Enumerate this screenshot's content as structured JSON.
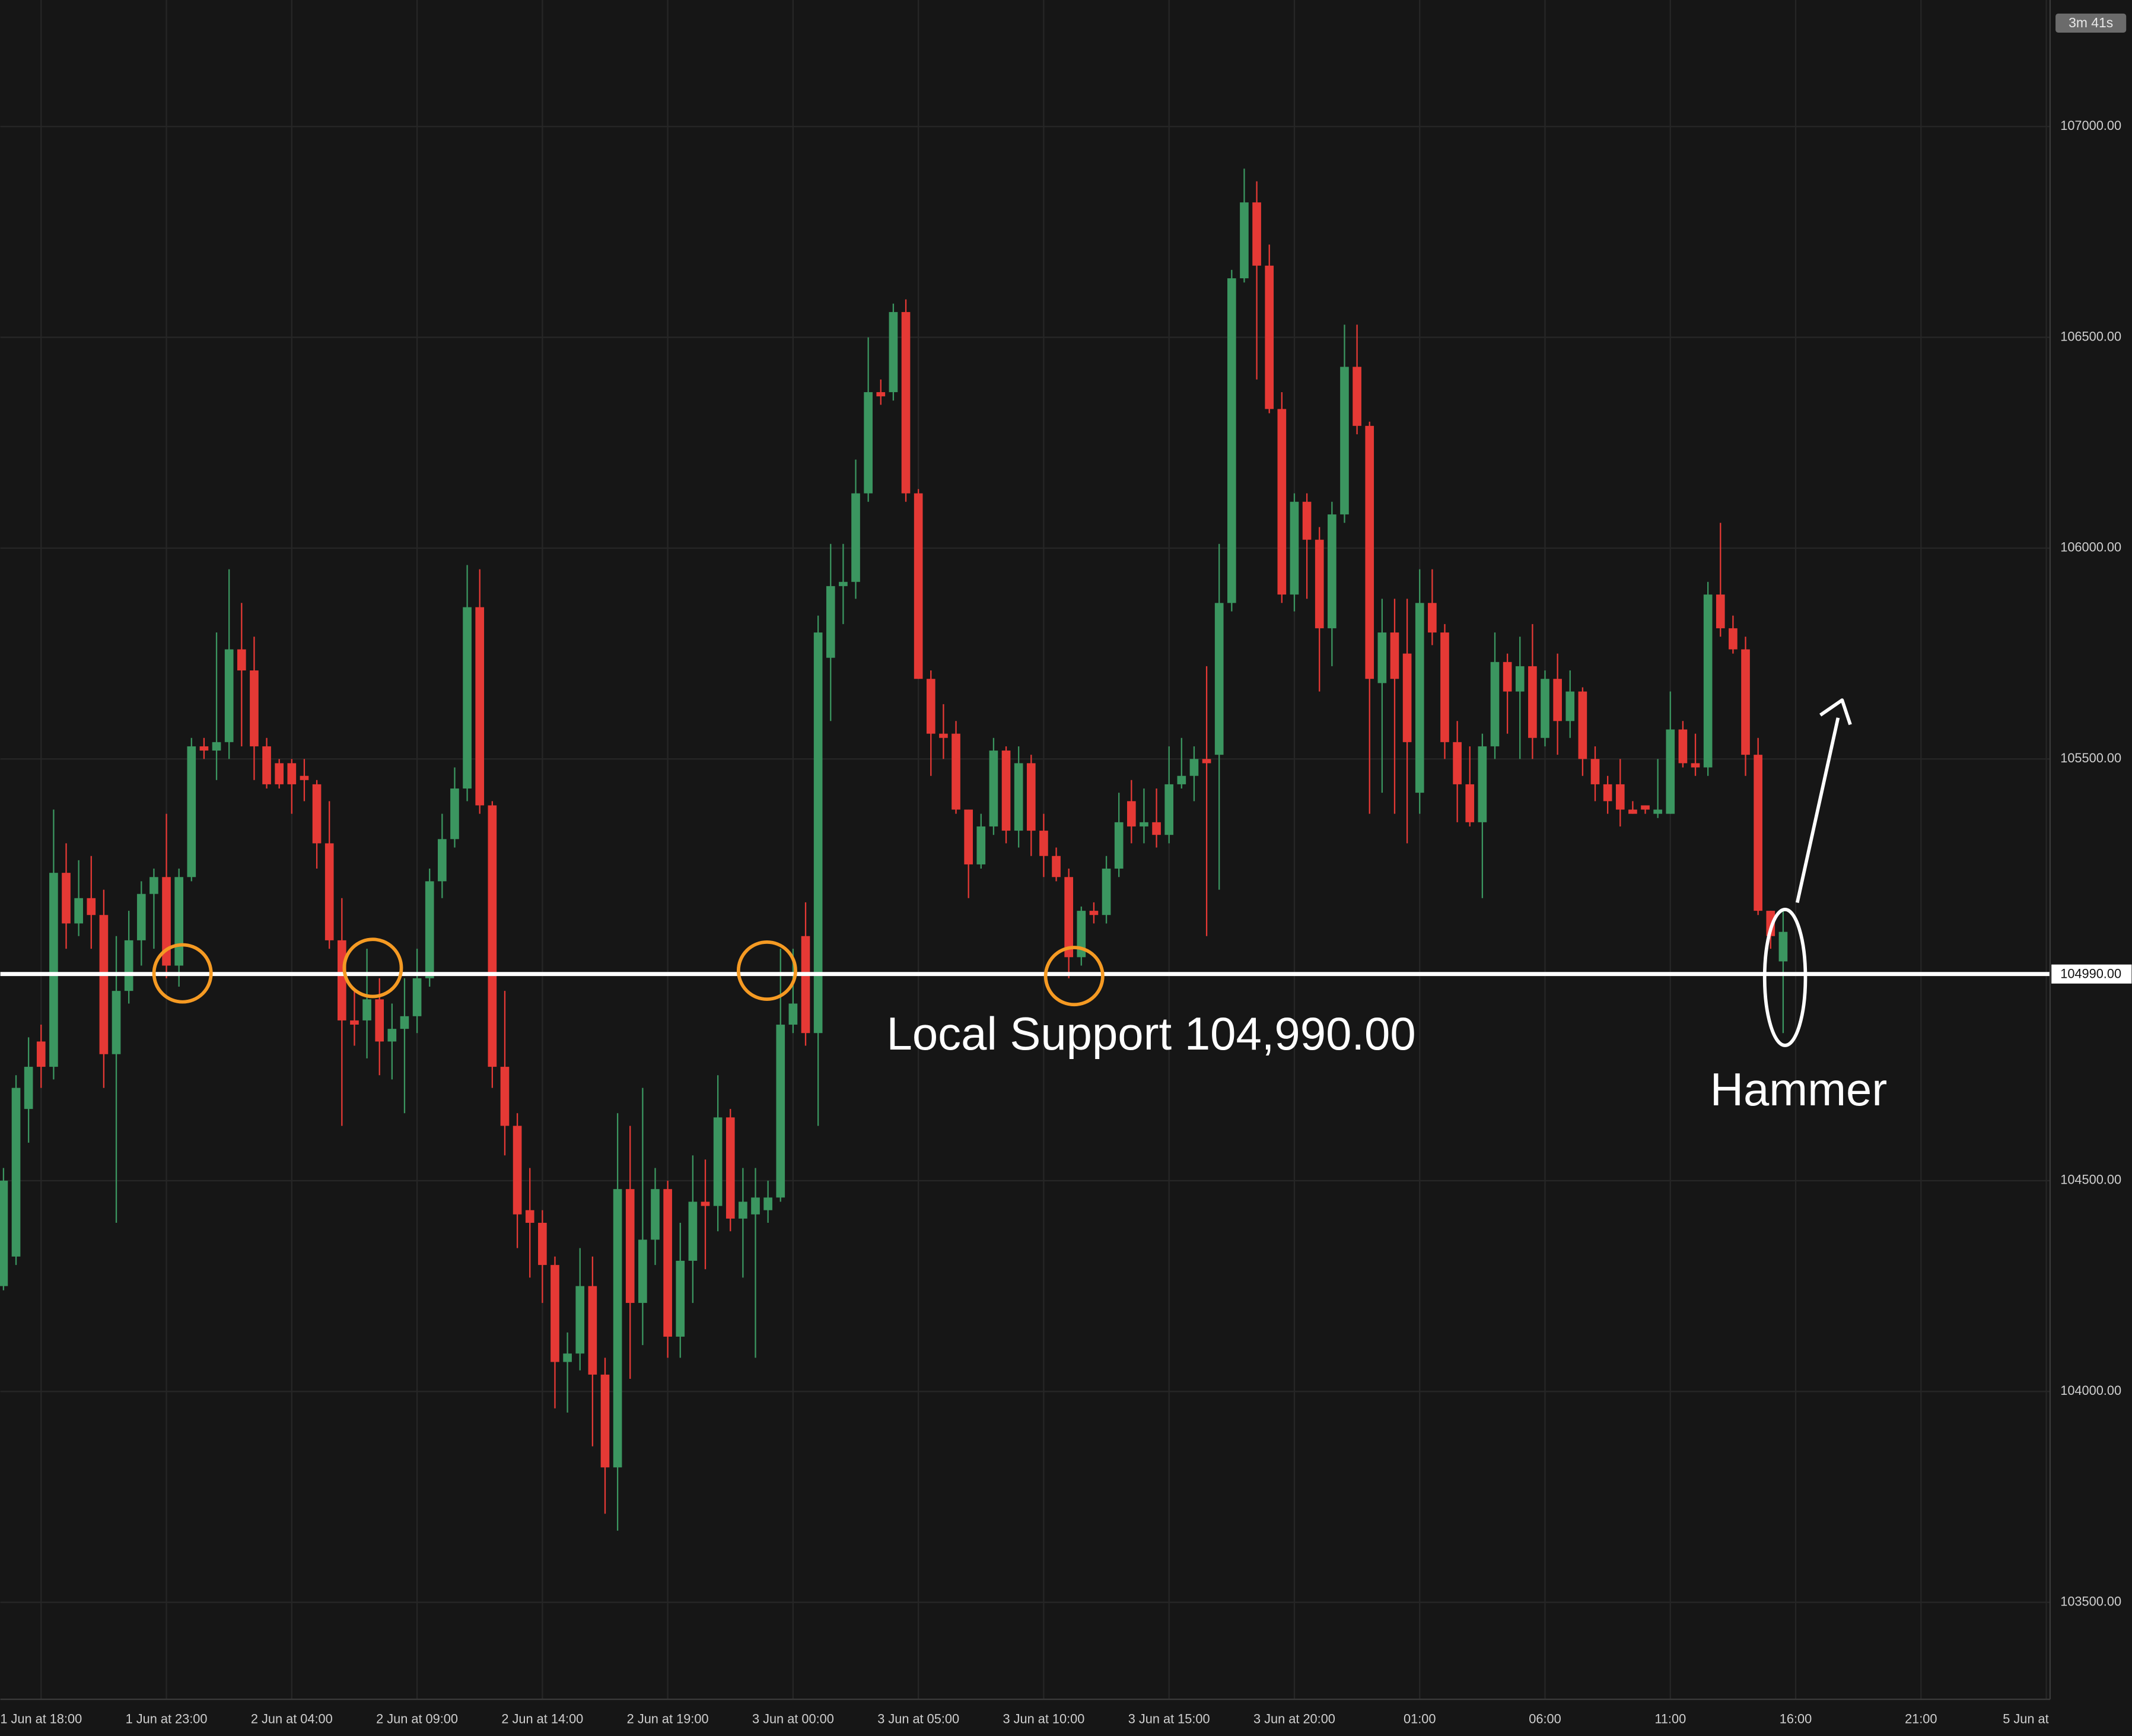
{
  "chart_data": {
    "type": "candlestick",
    "timer": "3m 41s",
    "annotations": [
      "Local Support 104,990.00",
      "Hammer"
    ],
    "support": {
      "value": 104990,
      "label": "104990.00"
    },
    "support_color": "#ffffff",
    "marker_color": "#f59a23",
    "up_color": "#3b9660",
    "down_color": "#e53935",
    "grid": true,
    "xlim": [
      -3.25,
      160.3
    ],
    "ylim": [
      103270,
      107300
    ],
    "yticks": [
      {
        "value": 103500,
        "label": "103500.00"
      },
      {
        "value": 104000,
        "label": "104000.00"
      },
      {
        "value": 104500,
        "label": "104500.00"
      },
      {
        "value": 105500,
        "label": "105500.00"
      },
      {
        "value": 106000,
        "label": "106000.00"
      },
      {
        "value": 106500,
        "label": "106500.00"
      },
      {
        "value": 107000,
        "label": "107000.00"
      }
    ],
    "xticks": [
      {
        "value": 0,
        "label": "1 Jun at 18:00"
      },
      {
        "value": 10,
        "label": "1 Jun at 23:00"
      },
      {
        "value": 20,
        "label": "2 Jun at 04:00"
      },
      {
        "value": 30,
        "label": "2 Jun at 09:00"
      },
      {
        "value": 40,
        "label": "2 Jun at 14:00"
      },
      {
        "value": 50,
        "label": "2 Jun at 19:00"
      },
      {
        "value": 60,
        "label": "3 Jun at 00:00"
      },
      {
        "value": 70,
        "label": "3 Jun at 05:00"
      },
      {
        "value": 80,
        "label": "3 Jun at 10:00"
      },
      {
        "value": 90,
        "label": "3 Jun at 15:00"
      },
      {
        "value": 100,
        "label": "3 Jun at 20:00"
      },
      {
        "value": 110,
        "label": "01:00"
      },
      {
        "value": 120,
        "label": "06:00"
      },
      {
        "value": 130,
        "label": "11:00"
      },
      {
        "value": 140,
        "label": "16:00"
      },
      {
        "value": 150,
        "label": "21:00"
      },
      {
        "value": 160,
        "label": "5 Jun at"
      }
    ],
    "x": [
      -3,
      -2,
      -1,
      0,
      1,
      2,
      3,
      4,
      5,
      6,
      7,
      8,
      9,
      10,
      11,
      12,
      13,
      14,
      15,
      16,
      17,
      18,
      19,
      20,
      21,
      22,
      23,
      24,
      25,
      26,
      27,
      28,
      29,
      30,
      31,
      32,
      33,
      34,
      35,
      36,
      37,
      38,
      39,
      40,
      41,
      42,
      43,
      44,
      45,
      46,
      47,
      48,
      49,
      50,
      51,
      52,
      53,
      54,
      55,
      56,
      57,
      58,
      59,
      60,
      61,
      62,
      63,
      64,
      65,
      66,
      67,
      68,
      69,
      70,
      71,
      72,
      73,
      74,
      75,
      76,
      77,
      78,
      79,
      80,
      81,
      82,
      83,
      84,
      85,
      86,
      87,
      88,
      89,
      90,
      91,
      92,
      93,
      94,
      95,
      96,
      97,
      98,
      99,
      100,
      101,
      102,
      103,
      104,
      105,
      106,
      107,
      108,
      109,
      110,
      111,
      112,
      113,
      114,
      115,
      116,
      117,
      118,
      119,
      120,
      121,
      122,
      123,
      124,
      125,
      126,
      127,
      128,
      129,
      130,
      131,
      132,
      133,
      134,
      135,
      136,
      137,
      138,
      139
    ],
    "open": [
      104250,
      104320,
      104670,
      104830,
      104770,
      105230,
      105110,
      105170,
      105130,
      104800,
      104950,
      105070,
      105180,
      105220,
      105010,
      105220,
      105530,
      105520,
      105540,
      105760,
      105710,
      105530,
      105490,
      105490,
      105460,
      105440,
      105300,
      105070,
      104880,
      104880,
      104930,
      104830,
      104860,
      104890,
      104980,
      105210,
      105310,
      105430,
      105860,
      105390,
      104770,
      104630,
      104430,
      104400,
      104300,
      104070,
      104090,
      104250,
      104040,
      103820,
      104480,
      104210,
      104360,
      104480,
      104130,
      104310,
      104450,
      104440,
      104650,
      104410,
      104420,
      104430,
      104460,
      104870,
      105080,
      104850,
      105740,
      105910,
      105920,
      106130,
      106370,
      106370,
      106560,
      106130,
      105690,
      105560,
      105560,
      105380,
      105250,
      105340,
      105520,
      105330,
      105490,
      105330,
      105270,
      105220,
      105030,
      105140,
      105130,
      105240,
      105400,
      105340,
      105350,
      105320,
      105440,
      105460,
      105500,
      105510,
      105870,
      106640,
      106820,
      106670,
      106330,
      105890,
      106110,
      106020,
      105810,
      106080,
      106430,
      106290,
      105680,
      105800,
      105750,
      105420,
      105870,
      105800,
      105540,
      105440,
      105350,
      105530,
      105730,
      105660,
      105720,
      105550,
      105690,
      105590,
      105660,
      105500,
      105440,
      105440,
      105380,
      105390,
      105370,
      105370,
      105570,
      105490,
      105480,
      105890,
      105810,
      105760,
      105510,
      105140,
      105020
    ],
    "high": [
      104530,
      104750,
      104840,
      104870,
      105380,
      105300,
      105260,
      105270,
      105190,
      105080,
      105140,
      105210,
      105240,
      105370,
      105240,
      105550,
      105550,
      105800,
      105950,
      105870,
      105790,
      105550,
      105500,
      105500,
      105500,
      105450,
      105400,
      105170,
      104950,
      105050,
      104980,
      104920,
      104980,
      105050,
      105240,
      105370,
      105480,
      105960,
      105950,
      105400,
      104950,
      104660,
      104530,
      104430,
      104320,
      104140,
      104340,
      104320,
      104080,
      104660,
      104630,
      104720,
      104530,
      104500,
      104400,
      104560,
      104550,
      104750,
      104670,
      104530,
      104530,
      104500,
      105050,
      105050,
      105160,
      105840,
      106010,
      106010,
      106210,
      106500,
      106400,
      106580,
      106590,
      106140,
      105710,
      105630,
      105590,
      105380,
      105370,
      105550,
      105530,
      105530,
      105510,
      105370,
      105290,
      105240,
      105150,
      105160,
      105270,
      105420,
      105450,
      105430,
      105430,
      105530,
      105550,
      105530,
      105720,
      106010,
      106660,
      106900,
      106870,
      106720,
      106370,
      106130,
      106130,
      106050,
      106110,
      106530,
      106530,
      106300,
      105880,
      105880,
      105880,
      105950,
      105950,
      105820,
      105590,
      105530,
      105560,
      105800,
      105750,
      105790,
      105820,
      105710,
      105750,
      105710,
      105670,
      105530,
      105460,
      105500,
      105400,
      105390,
      105500,
      105660,
      105590,
      105560,
      105920,
      106060,
      105840,
      105790,
      105550,
      105140,
      105140
    ],
    "low": [
      104240,
      104300,
      104590,
      104720,
      104740,
      105050,
      105080,
      105050,
      104720,
      104400,
      104920,
      105010,
      105050,
      104980,
      104960,
      105210,
      105500,
      105450,
      105500,
      105530,
      105450,
      105430,
      105430,
      105370,
      105400,
      105240,
      105050,
      104630,
      104820,
      104790,
      104750,
      104740,
      104660,
      104850,
      104960,
      105170,
      105290,
      105400,
      105370,
      104720,
      104560,
      104340,
      104270,
      104210,
      103960,
      103950,
      104050,
      103870,
      103710,
      103670,
      104030,
      104110,
      104300,
      104080,
      104080,
      104210,
      104290,
      104380,
      104380,
      104270,
      104080,
      104400,
      104450,
      104850,
      104820,
      104630,
      105590,
      105820,
      105880,
      106110,
      106340,
      106350,
      106110,
      105690,
      105460,
      105500,
      105370,
      105170,
      105240,
      105320,
      105300,
      105290,
      105270,
      105220,
      105210,
      104980,
      105010,
      105110,
      105110,
      105220,
      105300,
      105300,
      105290,
      105300,
      105430,
      105400,
      105080,
      105190,
      105850,
      106630,
      106400,
      106320,
      105870,
      105850,
      105880,
      105660,
      105720,
      106060,
      106270,
      105370,
      105420,
      105370,
      105300,
      105370,
      105770,
      105500,
      105350,
      105340,
      105170,
      105500,
      105560,
      105500,
      105500,
      105530,
      105510,
      105550,
      105460,
      105400,
      105370,
      105340,
      105370,
      105370,
      105360,
      105370,
      105480,
      105460,
      105460,
      105790,
      105750,
      105460,
      105130,
      105050,
      104850
    ],
    "close": [
      104500,
      104720,
      104770,
      104770,
      105230,
      105110,
      105170,
      105130,
      104800,
      104950,
      105070,
      105180,
      105220,
      105010,
      105220,
      105530,
      105520,
      105540,
      105760,
      105710,
      105530,
      105440,
      105440,
      105440,
      105450,
      105300,
      105070,
      104880,
      104870,
      104930,
      104830,
      104860,
      104890,
      104980,
      105210,
      105310,
      105430,
      105860,
      105390,
      104770,
      104630,
      104420,
      104400,
      104300,
      104070,
      104090,
      104250,
      104040,
      103820,
      104480,
      104210,
      104360,
      104480,
      104130,
      104310,
      104450,
      104440,
      104650,
      104410,
      104450,
      104460,
      104460,
      104870,
      104920,
      104850,
      105800,
      105910,
      105920,
      106130,
      106370,
      106360,
      106560,
      106130,
      105690,
      105560,
      105550,
      105380,
      105250,
      105340,
      105520,
      105330,
      105490,
      105330,
      105270,
      105220,
      105030,
      105140,
      105130,
      105240,
      105350,
      105340,
      105350,
      105320,
      105440,
      105460,
      105500,
      105490,
      105870,
      106640,
      106820,
      106670,
      106330,
      105890,
      106110,
      106020,
      105810,
      106080,
      106430,
      106290,
      105690,
      105800,
      105690,
      105540,
      105870,
      105800,
      105540,
      105440,
      105350,
      105530,
      105730,
      105660,
      105720,
      105550,
      105690,
      105590,
      105660,
      105500,
      105440,
      105400,
      105380,
      105370,
      105380,
      105380,
      105570,
      105490,
      105480,
      105890,
      105810,
      105760,
      105510,
      105140,
      105080,
      105090
    ]
  }
}
